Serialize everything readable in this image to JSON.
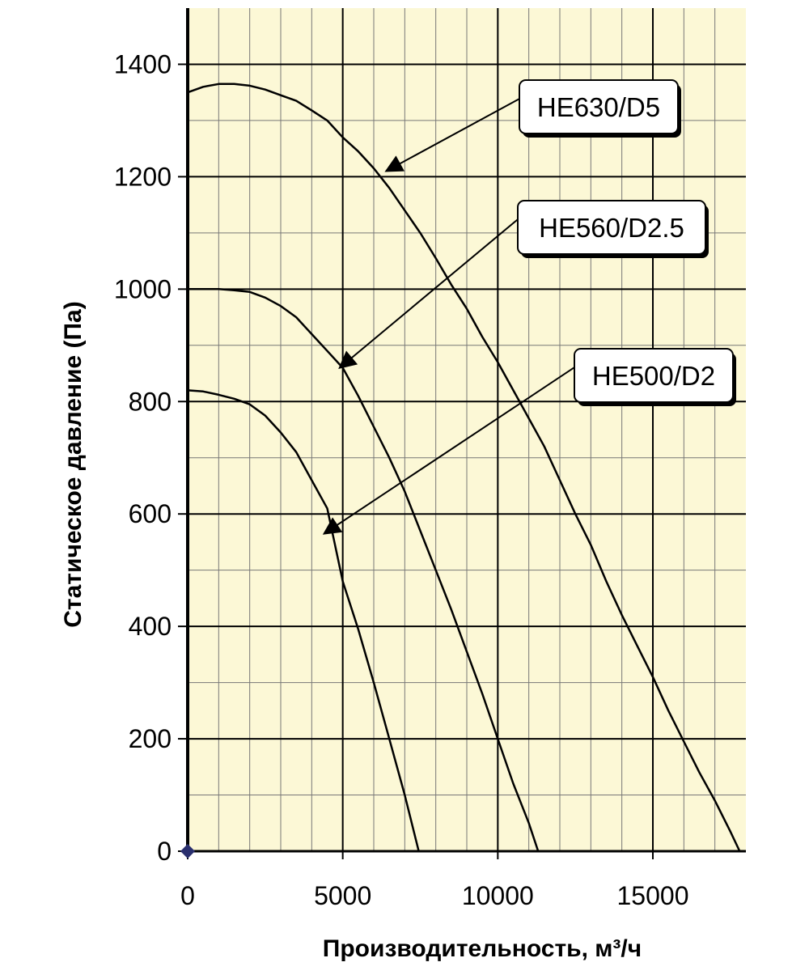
{
  "colors": {
    "plot_background": "#fcf8d6",
    "grid_major": "#000000",
    "grid_minor": "#777777",
    "curve": "#000000",
    "origin_marker": "#2a2f6e"
  },
  "chart_data": {
    "type": "line",
    "xlabel": "Производительность, м³/ч",
    "ylabel": "Статическое давление (Па)",
    "xlim": [
      0,
      18000
    ],
    "ylim": [
      0,
      1400
    ],
    "y_extent_top": 1500,
    "x_ticks": [
      0,
      5000,
      10000,
      15000
    ],
    "x_tick_labels": [
      "0",
      "5000",
      "10000",
      "15000"
    ],
    "y_ticks": [
      0,
      200,
      400,
      600,
      800,
      1000,
      1200,
      1400
    ],
    "y_tick_labels": [
      "0",
      "200",
      "400",
      "600",
      "800",
      "1000",
      "1200",
      "1400"
    ],
    "grid": true,
    "minor_grid_step_x": 1000,
    "minor_grid_step_y": 100,
    "series": [
      {
        "name": "HE630/D5",
        "x": [
          0,
          500,
          1000,
          1500,
          2000,
          2500,
          3000,
          3500,
          4000,
          4500,
          5000,
          5500,
          6000,
          6500,
          7000,
          7500,
          8000,
          8500,
          9000,
          9500,
          10000,
          10500,
          11000,
          11500,
          12000,
          12500,
          13000,
          13500,
          14000,
          14500,
          15000,
          15500,
          16000,
          16500,
          17000,
          17500,
          17800
        ],
        "y": [
          1350,
          1360,
          1365,
          1365,
          1362,
          1355,
          1345,
          1335,
          1318,
          1300,
          1270,
          1245,
          1215,
          1180,
          1140,
          1100,
          1055,
          1008,
          965,
          915,
          870,
          820,
          770,
          720,
          660,
          600,
          545,
          480,
          420,
          365,
          310,
          250,
          195,
          140,
          90,
          35,
          0
        ]
      },
      {
        "name": "HE560/D2.5",
        "x": [
          0,
          500,
          1000,
          1500,
          2000,
          2500,
          3000,
          3500,
          4000,
          4500,
          5000,
          5500,
          6000,
          6500,
          7000,
          7500,
          8000,
          8500,
          9000,
          9500,
          10000,
          10500,
          11000,
          11300
        ],
        "y": [
          1000,
          1000,
          1000,
          998,
          995,
          985,
          970,
          950,
          920,
          890,
          860,
          810,
          755,
          700,
          640,
          570,
          500,
          430,
          355,
          280,
          200,
          120,
          50,
          0
        ]
      },
      {
        "name": "HE500/D2",
        "x": [
          0,
          500,
          1000,
          1500,
          2000,
          2500,
          3000,
          3500,
          4000,
          4500,
          5000,
          5500,
          6000,
          6500,
          7000,
          7450
        ],
        "y": [
          820,
          818,
          812,
          805,
          795,
          775,
          745,
          710,
          660,
          610,
          480,
          395,
          300,
          200,
          100,
          0
        ]
      }
    ],
    "annotations": [
      {
        "text": "HE630/D5",
        "series": "HE630/D5",
        "point": [
          6400,
          1210
        ]
      },
      {
        "text": "HE560/D2.5",
        "series": "HE560/D2.5",
        "point": [
          4900,
          860
        ]
      },
      {
        "text": "HE500/D2",
        "series": "HE500/D2",
        "point": [
          4400,
          565
        ]
      }
    ]
  }
}
